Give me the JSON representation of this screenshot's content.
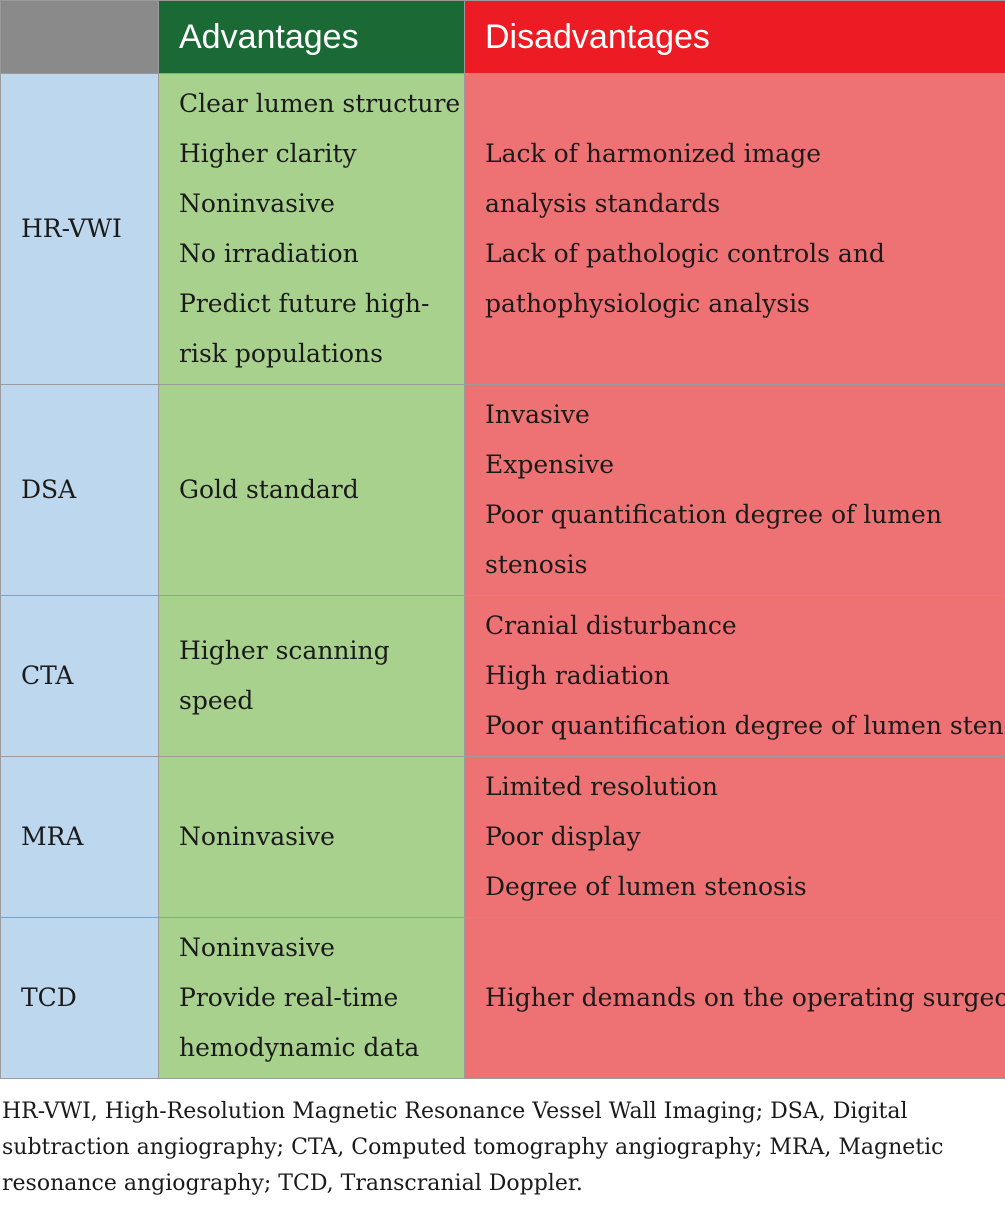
{
  "table": {
    "headers": {
      "blank": "",
      "advantages": "Advantages",
      "disadvantages": "Disadvantages"
    },
    "colors": {
      "header_blank": "#8a8a8a",
      "header_advantages": "#1b6a36",
      "header_disadvantages": "#ed1c24",
      "name_cell": "#bdd7ee",
      "advantages_cell": "#a9d18e",
      "disadvantages_cell": "#ee7274"
    },
    "rows": [
      {
        "name": "HR-VWI",
        "advantages": [
          "Clear lumen structure",
          "Higher clarity",
          "Noninvasive",
          "No irradiation",
          "Predict future high-",
          "risk populations"
        ],
        "disadvantages": [
          "Lack of harmonized image",
          "analysis standards",
          "Lack of pathologic controls and",
          "pathophysiologic analysis"
        ]
      },
      {
        "name": "DSA",
        "advantages": [
          "Gold standard"
        ],
        "disadvantages": [
          "Invasive",
          "Expensive",
          "Poor quantification degree of lumen",
          "stenosis"
        ]
      },
      {
        "name": "CTA",
        "advantages": [
          "Higher scanning",
          "speed"
        ],
        "disadvantages": [
          "Cranial disturbance",
          "High radiation",
          "Poor quantification degree of lumen stenosis"
        ]
      },
      {
        "name": "MRA",
        "advantages": [
          "Noninvasive"
        ],
        "disadvantages": [
          "Limited resolution",
          "Poor display",
          "Degree of lumen stenosis"
        ]
      },
      {
        "name": "TCD",
        "advantages": [
          "Noninvasive",
          "Provide real-time",
          "hemodynamic data"
        ],
        "disadvantages": [
          "Higher demands on the operating surgeon"
        ]
      }
    ]
  },
  "footnote": [
    "HR-VWI, High-Resolution Magnetic Resonance Vessel Wall Imaging; DSA, Digital",
    "subtraction angiography; CTA, Computed tomography angiography; MRA, Magnetic",
    "resonance angiography; TCD, Transcranial Doppler."
  ]
}
